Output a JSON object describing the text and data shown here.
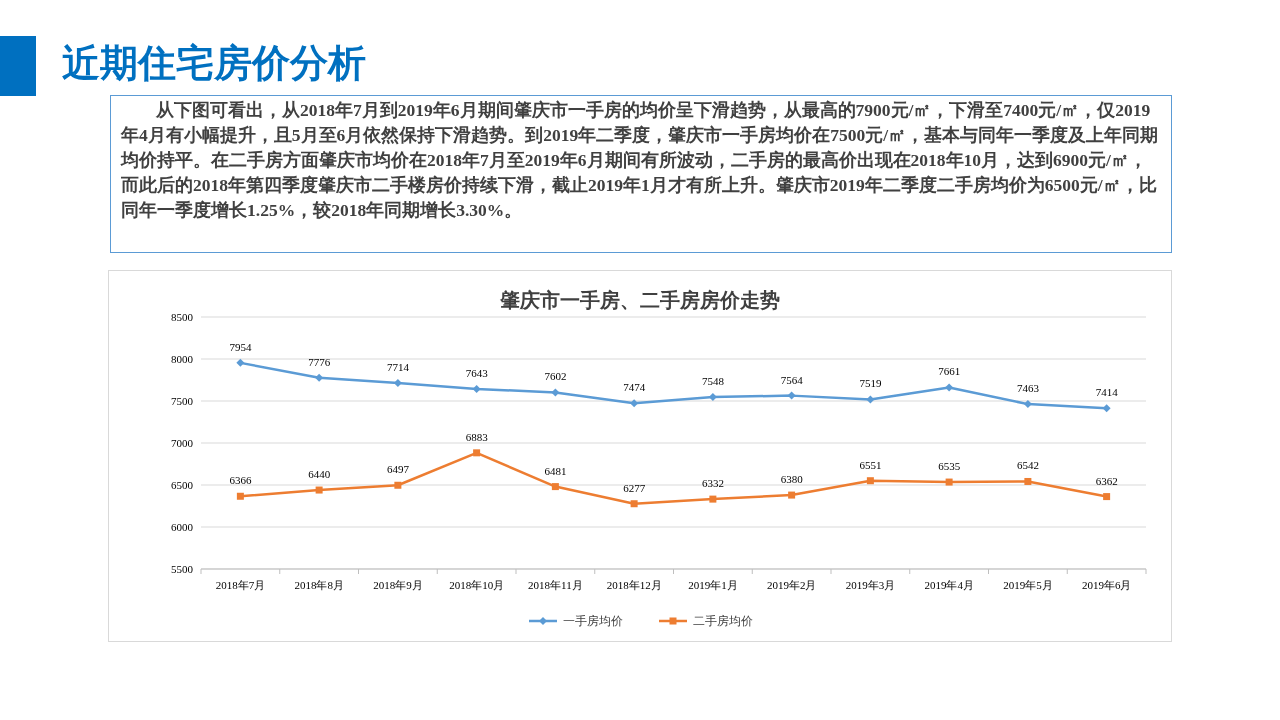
{
  "chart_data": {
    "type": "line",
    "title": "肇庆市一手房、二手房房价走势",
    "annotations": [
      "近期住宅房价分析",
      "从下图可看出，从2018年7月到2019年6月期间肇庆市一手房的均价呈下滑趋势，从最高的7900元/㎡，下滑至7400元/㎡，仅2019年4月有小幅提升，且5月至6月依然保持下滑趋势。到2019年二季度，肇庆市一手房均价在7500元/㎡，基本与同年一季度及上年同期均价持平。在二手房方面肇庆市均价在2018年7月至2019年6月期间有所波动，二手房的最高价出现在2018年10月，达到6900元/㎡，而此后的2018年第四季度肇庆市二手楼房价持续下滑，截止2019年1月才有所上升。肇庆市2019年二季度二手房均价为6500元/㎡，比同年一季度增长1.25%，较2018年同期增长3.30%。"
    ],
    "categories": [
      "2018年7月",
      "2018年8月",
      "2018年9月",
      "2018年10月",
      "2018年11月",
      "2018年12月",
      "2019年1月",
      "2019年2月",
      "2019年3月",
      "2019年4月",
      "2019年5月",
      "2019年6月"
    ],
    "series": [
      {
        "name": "一手房均价",
        "color": "#5b9bd5",
        "marker": "diamond",
        "values": [
          7954,
          7776,
          7714,
          7643,
          7602,
          7474,
          7548,
          7564,
          7519,
          7661,
          7463,
          7414
        ]
      },
      {
        "name": "二手房均价",
        "color": "#ed7d31",
        "marker": "square",
        "values": [
          6366,
          6440,
          6497,
          6883,
          6481,
          6277,
          6332,
          6380,
          6551,
          6535,
          6542,
          6362
        ]
      }
    ],
    "ylim": [
      5500,
      8500
    ],
    "yticks": [
      5500,
      6000,
      6500,
      7000,
      7500,
      8000,
      8500
    ],
    "grid": "y",
    "legend": "bottom",
    "data_labels": true,
    "line_style": "solid"
  }
}
